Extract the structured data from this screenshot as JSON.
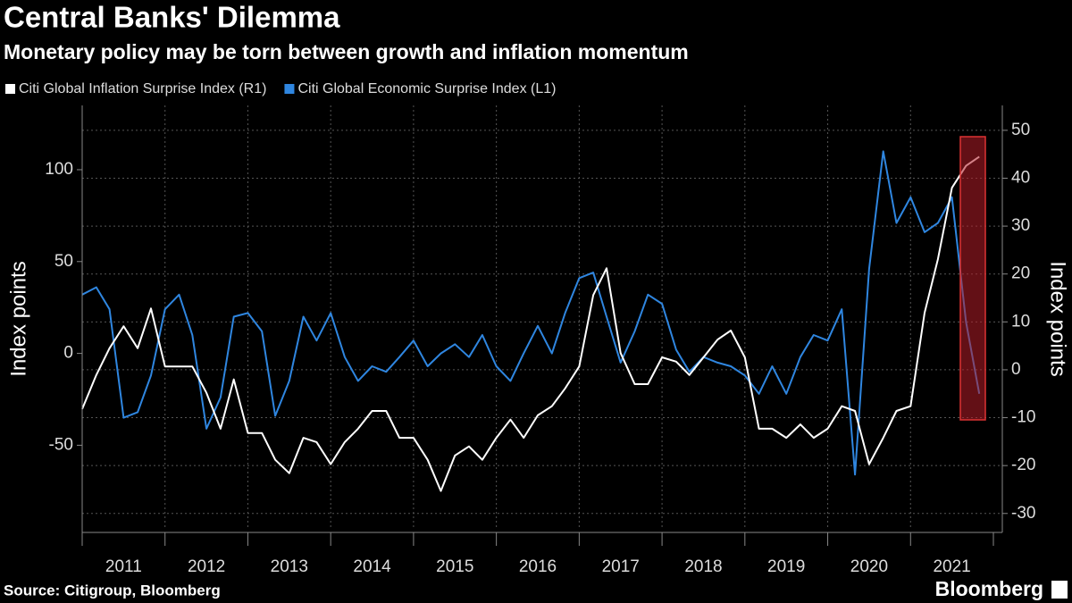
{
  "chart_data": {
    "type": "line",
    "title": "Central Banks' Dilemma",
    "subtitle": "Monetary policy may be torn between growth and inflation momentum",
    "ylabel": "Index points",
    "y2label": "Index points",
    "source": "Source: Citigroup, Bloomberg",
    "brand": "Bloomberg",
    "x": [
      2011.0,
      2011.17,
      2011.33,
      2011.5,
      2011.67,
      2011.83,
      2012.0,
      2012.17,
      2012.33,
      2012.5,
      2012.67,
      2012.83,
      2013.0,
      2013.17,
      2013.33,
      2013.5,
      2013.67,
      2013.83,
      2014.0,
      2014.17,
      2014.33,
      2014.5,
      2014.67,
      2014.83,
      2015.0,
      2015.17,
      2015.33,
      2015.5,
      2015.67,
      2015.83,
      2016.0,
      2016.17,
      2016.33,
      2016.5,
      2016.67,
      2016.83,
      2017.0,
      2017.17,
      2017.33,
      2017.5,
      2017.67,
      2017.83,
      2018.0,
      2018.17,
      2018.33,
      2018.5,
      2018.67,
      2018.83,
      2019.0,
      2019.17,
      2019.33,
      2019.5,
      2019.67,
      2019.83,
      2020.0,
      2020.17,
      2020.33,
      2020.5,
      2020.67,
      2020.83,
      2021.0,
      2021.17,
      2021.33,
      2021.5,
      2021.67,
      2021.83
    ],
    "series": [
      {
        "name": "Citi Global Inflation Surprise Index (R1)",
        "color": "#ffffff",
        "axis": "y2",
        "values": [
          -8.2,
          -1.1,
          4.5,
          9.1,
          4.5,
          12.8,
          0.7,
          0.7,
          0.7,
          -4.8,
          -12.3,
          -2,
          -13.2,
          -13.2,
          -18.8,
          -21.6,
          -14.2,
          -15.1,
          -19.7,
          -15.1,
          -12.3,
          -8.6,
          -8.6,
          -14.2,
          -14.2,
          -18.8,
          -25.3,
          -17.9,
          -16,
          -18.8,
          -14.2,
          -10.4,
          -14.2,
          -9.5,
          -7.6,
          -3.9,
          0.7,
          15.6,
          21.2,
          3.5,
          -3,
          -3,
          2.6,
          1.7,
          -1.1,
          2.6,
          6.3,
          8.2,
          2.6,
          -12.3,
          -12.3,
          -14.2,
          -11.4,
          -14.2,
          -12.3,
          -7.6,
          -8.6,
          -19.7,
          -14.2,
          -8.6,
          -7.6,
          11.9,
          23.1,
          38,
          42.6,
          44.5
        ]
      },
      {
        "name": "Citi Global Economic Surprise Index (L1)",
        "color": "#2f86e0",
        "values": [
          32,
          36,
          24,
          -35,
          -32,
          -12,
          24,
          32,
          10,
          -41,
          -24,
          20,
          22,
          12,
          -34,
          -15,
          20,
          7,
          22,
          -2,
          -15,
          -7,
          -10,
          -2,
          7,
          -7,
          0,
          5,
          -2,
          10,
          -7,
          -15,
          0,
          15,
          0,
          22,
          41,
          44,
          20,
          -5,
          12,
          32,
          27,
          2,
          -10,
          -2,
          -5,
          -7,
          -12,
          -22,
          -7,
          -22,
          -2,
          10,
          7,
          24,
          -66,
          46,
          110,
          71,
          85,
          66,
          71,
          85,
          17,
          -22
        ]
      }
    ],
    "xlim": [
      2011,
      2022
    ],
    "xticks": [
      2011,
      2012,
      2013,
      2014,
      2015,
      2016,
      2017,
      2018,
      2019,
      2020,
      2021
    ],
    "ylim": [
      -96,
      135
    ],
    "yticks": [
      -50,
      0,
      50,
      100
    ],
    "y2lim": [
      -33.4,
      55.2
    ],
    "y2ticks": [
      -30,
      -20,
      -10,
      0,
      10,
      20,
      30,
      40,
      50
    ],
    "grid": "y2"
  }
}
